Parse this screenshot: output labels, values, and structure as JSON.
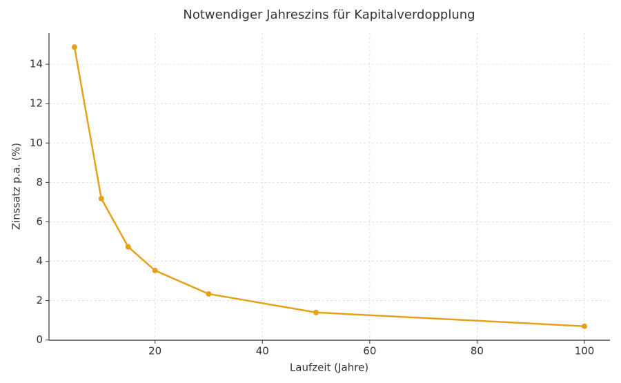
{
  "chart_data": {
    "type": "line",
    "title": "Notwendiger Jahreszins für Kapitalverdopplung",
    "x_label": "Laufzeit (Jahre)",
    "y_label": "Zinssatz p.a. (%)",
    "x": [
      5,
      10,
      15,
      20,
      30,
      50,
      100
    ],
    "values": [
      14.87,
      7.18,
      4.73,
      3.53,
      2.34,
      1.4,
      0.7
    ],
    "color": "#e5a11a",
    "xlim": [
      0.25,
      104.75
    ],
    "ylim": [
      -0.01,
      15.58
    ],
    "xticks": [
      20,
      40,
      60,
      80,
      100
    ],
    "yticks": [
      0,
      2,
      4,
      6,
      8,
      10,
      12,
      14
    ],
    "grid": true
  }
}
